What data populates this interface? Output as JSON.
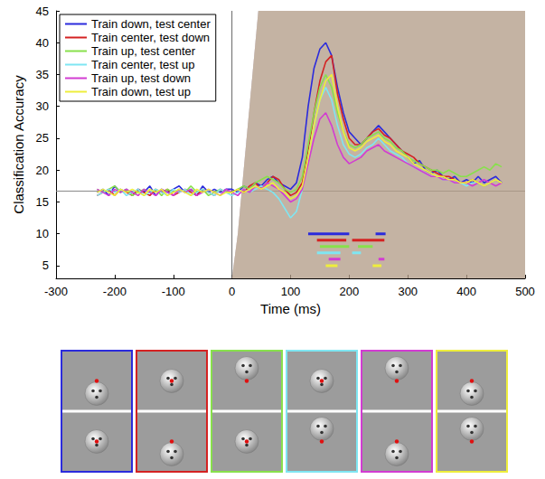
{
  "chart_data": {
    "type": "line",
    "xlabel": "Time (ms)",
    "ylabel": "Classification Accuracy",
    "xlim": [
      -300,
      500
    ],
    "xticks": [
      -300,
      -200,
      -100,
      0,
      100,
      200,
      300,
      400,
      500
    ],
    "ylim": [
      3,
      45
    ],
    "yticks": [
      5,
      10,
      15,
      20,
      25,
      30,
      35,
      40,
      45
    ],
    "grid": false,
    "legend": "upper left",
    "hlines": [
      16.7
    ],
    "vlines": [
      0
    ],
    "x": [
      -230,
      -220,
      -210,
      -200,
      -190,
      -180,
      -170,
      -160,
      -150,
      -140,
      -130,
      -120,
      -110,
      -100,
      -90,
      -80,
      -70,
      -60,
      -50,
      -40,
      -30,
      -20,
      -10,
      0,
      10,
      20,
      30,
      40,
      50,
      60,
      70,
      80,
      90,
      100,
      110,
      120,
      130,
      140,
      150,
      160,
      170,
      180,
      190,
      200,
      210,
      220,
      230,
      240,
      250,
      260,
      270,
      280,
      290,
      300,
      310,
      320,
      330,
      340,
      350,
      360,
      370,
      380,
      390,
      400,
      410,
      420,
      430,
      440,
      450,
      460
    ],
    "series": [
      {
        "name": "Train down, test center",
        "color": "#2b2bdc",
        "error": 1.5,
        "significant": [
          [
            130,
            200
          ],
          [
            245,
            262
          ]
        ],
        "values": [
          16.5,
          17,
          16,
          17.5,
          16.5,
          17,
          16,
          17,
          16.5,
          17.5,
          16,
          17,
          16.5,
          17,
          17.5,
          16.5,
          17,
          16,
          17.5,
          16.5,
          17,
          16.5,
          17,
          17,
          16.5,
          17.5,
          17,
          18,
          17.5,
          18.5,
          19,
          18,
          17.5,
          17,
          18,
          22,
          30,
          36,
          39,
          40,
          38,
          33,
          29,
          26,
          25,
          24,
          25,
          26,
          27,
          26,
          25,
          24,
          23,
          22,
          21,
          21.5,
          20,
          19.5,
          20,
          19,
          18.5,
          19,
          18,
          18.5,
          18,
          19,
          18,
          18.5,
          19,
          18
        ]
      },
      {
        "name": "Train center, test down",
        "color": "#d42222",
        "error": 1.2,
        "significant": [
          [
            145,
            195
          ],
          [
            205,
            260
          ]
        ],
        "values": [
          16,
          16.5,
          17,
          16,
          17,
          16.5,
          16,
          17,
          16.5,
          16,
          17,
          16.5,
          17,
          16,
          16.5,
          17,
          16.5,
          16,
          17,
          16.5,
          16,
          17,
          16.5,
          16.5,
          17,
          16.5,
          17.5,
          18,
          17,
          18,
          19,
          18.5,
          17,
          16,
          16.5,
          18,
          23,
          29,
          34,
          37,
          38,
          32,
          28,
          25,
          24,
          24,
          25,
          26,
          26.5,
          25.5,
          25,
          24,
          23,
          22.5,
          22,
          21,
          20.5,
          20,
          19.5,
          19,
          19,
          18.5,
          18,
          18,
          18.5,
          18,
          17.5,
          18,
          18.5,
          18
        ]
      },
      {
        "name": "Train up, test center",
        "color": "#88e04c",
        "error": 1.5,
        "significant": [
          [
            150,
            200
          ],
          [
            215,
            240
          ]
        ],
        "values": [
          17,
          16.5,
          17,
          17.5,
          16.5,
          17,
          16,
          16.5,
          17,
          16.5,
          17,
          16,
          17,
          16.5,
          17,
          16.5,
          17.5,
          16.5,
          17,
          16,
          16.5,
          17,
          16.5,
          16.5,
          17,
          17.5,
          17,
          18,
          18.5,
          19,
          18.5,
          18,
          17,
          16.5,
          17,
          19,
          24,
          29,
          33,
          35,
          33,
          29,
          26,
          24,
          23.5,
          24,
          25,
          25.5,
          26,
          25,
          24.5,
          23.5,
          23,
          22,
          21.5,
          21,
          20.5,
          20,
          20,
          19.5,
          20,
          19.5,
          19,
          19,
          19.5,
          20,
          20.5,
          20,
          21,
          20.5
        ]
      },
      {
        "name": "Train center, test up",
        "color": "#7fe6f2",
        "error": 1.3,
        "significant": [
          [
            145,
            185
          ],
          [
            205,
            220
          ]
        ],
        "values": [
          16,
          16.5,
          17,
          16.5,
          17,
          16,
          16.5,
          17,
          16,
          16.5,
          17,
          16.5,
          16,
          17,
          16.5,
          17,
          16,
          16.5,
          17,
          16.5,
          16,
          17,
          16.5,
          16,
          16.5,
          17,
          16.5,
          17,
          17.5,
          17,
          16.5,
          15.5,
          14,
          12.5,
          13.5,
          17,
          22,
          27,
          31,
          33,
          31,
          27,
          24,
          22.5,
          22,
          22.5,
          23.5,
          24,
          25,
          24,
          23,
          22.5,
          22,
          21,
          20.5,
          20,
          19.5,
          19,
          19,
          18.5,
          18.5,
          18,
          18,
          17.5,
          18,
          18,
          17.5,
          18,
          18.5,
          18
        ]
      },
      {
        "name": "Train up, test down",
        "color": "#d23cd2",
        "error": 1.2,
        "significant": [
          [
            165,
            185
          ],
          [
            250,
            260
          ]
        ],
        "values": [
          17,
          16.5,
          16,
          17,
          16.5,
          17,
          16.5,
          16,
          17,
          16.5,
          16,
          17,
          16.5,
          16,
          17,
          16.5,
          17,
          16,
          16.5,
          17,
          16.5,
          16,
          17,
          16.5,
          16,
          17,
          16.5,
          17.5,
          17,
          18,
          17.5,
          17,
          16,
          15,
          15.5,
          17,
          21,
          25,
          28,
          29,
          27,
          24,
          22,
          21,
          21.5,
          22,
          23,
          23.5,
          24,
          23,
          22.5,
          22,
          21.5,
          21,
          20.5,
          20,
          19.5,
          19,
          19,
          18.5,
          18.5,
          18,
          18,
          18,
          17.5,
          18,
          18.5,
          18,
          17.5,
          18
        ]
      },
      {
        "name": "Train down, test up",
        "color": "#eeee3c",
        "error": 1.2,
        "significant": [
          [
            160,
            180
          ],
          [
            240,
            255
          ]
        ],
        "values": [
          16.5,
          17,
          16.5,
          16,
          17,
          16.5,
          17,
          16.5,
          16,
          17,
          16.5,
          17,
          16,
          16.5,
          17,
          16.5,
          16,
          17,
          16.5,
          17,
          16.5,
          16,
          16.5,
          16.5,
          17,
          16.5,
          17,
          17.5,
          17,
          17.5,
          18,
          17,
          16.5,
          15.5,
          16,
          17.5,
          22,
          27,
          31,
          34,
          35,
          30,
          26,
          23.5,
          23,
          23.5,
          24.5,
          25,
          25.5,
          24.5,
          24,
          23,
          22.5,
          22,
          21,
          20.5,
          20,
          19.5,
          19,
          19,
          18.5,
          18.5,
          18,
          18,
          18.5,
          18,
          17.5,
          18,
          18.5,
          18
        ]
      }
    ]
  }
}
